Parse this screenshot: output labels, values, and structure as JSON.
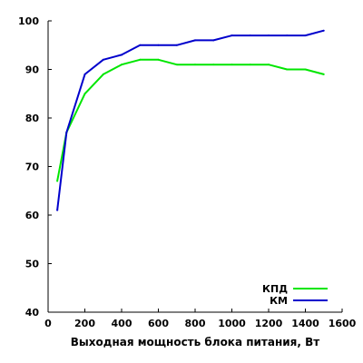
{
  "chart_data": {
    "type": "line",
    "title": "",
    "xlabel": "Выходная мощность блока питания, Вт",
    "ylabel": "",
    "xlim": [
      0,
      1600
    ],
    "ylim": [
      40,
      100
    ],
    "xticks": [
      0,
      200,
      400,
      600,
      800,
      1000,
      1200,
      1400,
      1600
    ],
    "yticks": [
      40,
      50,
      60,
      70,
      80,
      90,
      100
    ],
    "grid": false,
    "legend_position": "bottom-right",
    "series": [
      {
        "name": "КПД",
        "color": "#00e600",
        "x": [
          50,
          100,
          200,
          300,
          400,
          500,
          600,
          700,
          800,
          900,
          1000,
          1100,
          1200,
          1300,
          1400,
          1500
        ],
        "y": [
          67,
          77,
          85,
          89,
          91,
          92,
          92,
          91,
          91,
          91,
          91,
          91,
          91,
          90,
          90,
          89
        ]
      },
      {
        "name": "КМ",
        "color": "#0000cc",
        "x": [
          50,
          100,
          200,
          300,
          400,
          500,
          600,
          700,
          800,
          900,
          1000,
          1100,
          1200,
          1300,
          1400,
          1500
        ],
        "y": [
          61,
          77,
          89,
          92,
          93,
          95,
          95,
          95,
          96,
          96,
          97,
          97,
          97,
          97,
          97,
          98
        ]
      }
    ]
  }
}
